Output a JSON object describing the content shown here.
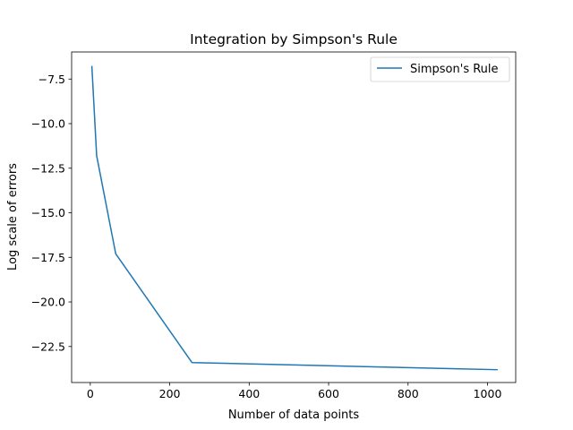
{
  "chart_data": {
    "type": "line",
    "title": "Integration by Simpson's Rule",
    "xlabel": "Number of data points",
    "ylabel": "Log scale of errors",
    "xlim": [
      -47,
      1071
    ],
    "ylim": [
      -24.52,
      -5.98
    ],
    "xticks": [
      0,
      200,
      400,
      600,
      800,
      1000
    ],
    "xtick_labels": [
      "0",
      "200",
      "400",
      "600",
      "800",
      "1000"
    ],
    "yticks": [
      -7.5,
      -10.0,
      -12.5,
      -15.0,
      -17.5,
      -20.0,
      -22.5
    ],
    "ytick_labels": [
      "−7.5",
      "−10.0",
      "−12.5",
      "−15.0",
      "−17.5",
      "−20.0",
      "−22.5"
    ],
    "grid": false,
    "legend_position": "top-right",
    "series": [
      {
        "name": "Simpson's Rule",
        "color": "#1f77b4",
        "x": [
          4,
          16,
          64,
          256,
          1024
        ],
        "y": [
          -6.8,
          -11.8,
          -17.3,
          -23.4,
          -23.8
        ]
      }
    ]
  }
}
